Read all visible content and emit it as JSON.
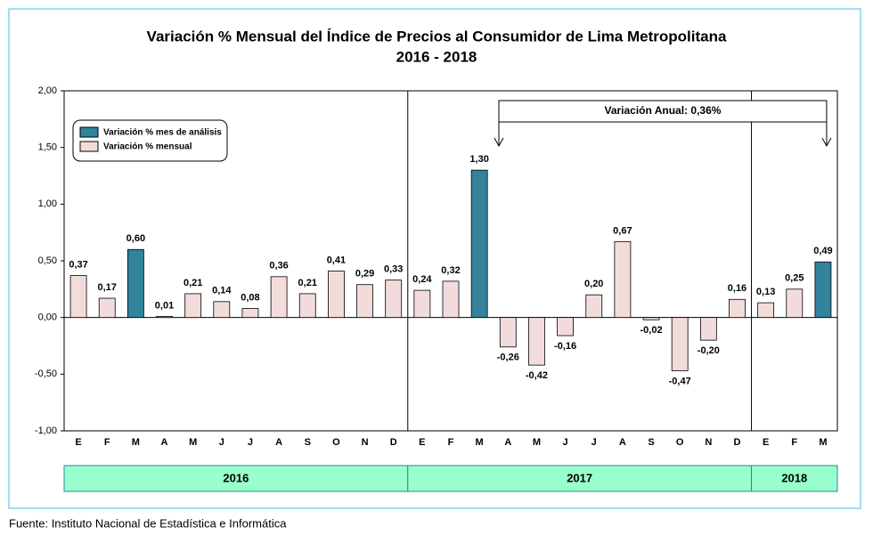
{
  "chart_data": {
    "type": "bar",
    "title": "Variación % Mensual del Índice de Precios al Consumidor de Lima Metropolitana",
    "subtitle": "2016 - 2018",
    "year_groups": [
      {
        "label": "2016",
        "months": [
          "E",
          "F",
          "M",
          "A",
          "M",
          "J",
          "J",
          "A",
          "S",
          "O",
          "N",
          "D"
        ]
      },
      {
        "label": "2017",
        "months": [
          "E",
          "F",
          "M",
          "A",
          "M",
          "J",
          "J",
          "A",
          "S",
          "O",
          "N",
          "D"
        ]
      },
      {
        "label": "2018",
        "months": [
          "E",
          "F",
          "M"
        ]
      }
    ],
    "series": [
      {
        "name": "Variación % mes de análisis",
        "color": "#31849b",
        "values": [
          null,
          null,
          0.6,
          null,
          null,
          null,
          null,
          null,
          null,
          null,
          null,
          null,
          null,
          null,
          1.3,
          null,
          null,
          null,
          null,
          null,
          null,
          null,
          null,
          null,
          null,
          null,
          0.49
        ],
        "value_labels": [
          null,
          null,
          "0,60",
          null,
          null,
          null,
          null,
          null,
          null,
          null,
          null,
          null,
          null,
          null,
          "1,30",
          null,
          null,
          null,
          null,
          null,
          null,
          null,
          null,
          null,
          null,
          null,
          "0,49"
        ]
      },
      {
        "name": "Variación % mensual",
        "color": "#f2dcdb",
        "values": [
          0.37,
          0.17,
          null,
          0.01,
          0.21,
          0.14,
          0.08,
          0.36,
          0.21,
          0.41,
          0.29,
          0.33,
          0.24,
          0.32,
          null,
          -0.26,
          -0.42,
          -0.16,
          0.2,
          0.67,
          -0.02,
          -0.47,
          -0.2,
          0.16,
          0.13,
          0.25,
          null
        ],
        "value_labels": [
          "0,37",
          "0,17",
          null,
          "0,01",
          "0,21",
          "0,14",
          "0,08",
          "0,36",
          "0,21",
          "0,41",
          "0,29",
          "0,33",
          "0,24",
          "0,32",
          null,
          "-0,26",
          "-0,42",
          "-0,16",
          "0,20",
          "0,67",
          "-0,02",
          "-0,47",
          "-0,20",
          "0,16",
          "0,13",
          "0,25",
          null
        ]
      }
    ],
    "ylim": [
      -1.0,
      2.0
    ],
    "yticks": [
      {
        "value": -1.0,
        "label": "-1,00"
      },
      {
        "value": -0.5,
        "label": "-0,50"
      },
      {
        "value": 0,
        "label": "0,00"
      },
      {
        "value": 0.5,
        "label": "0,50"
      },
      {
        "value": 1.0,
        "label": "1,00"
      },
      {
        "value": 1.5,
        "label": "1,50"
      },
      {
        "value": 2.0,
        "label": "2,00"
      }
    ],
    "annotation": "Variación Anual: 0,36%",
    "source": "Fuente: Instituto Nacional de Estadística e Informática"
  }
}
